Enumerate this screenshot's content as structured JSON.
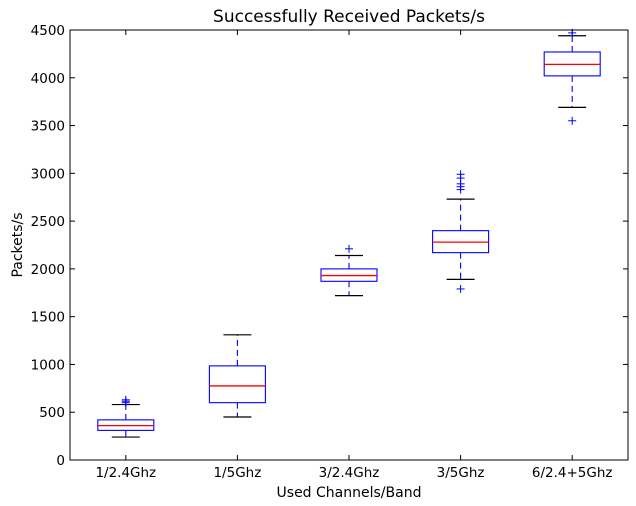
{
  "chart_data": {
    "type": "box",
    "title": "Successfully Received Packets/s",
    "xlabel": "Used Channels/Band",
    "ylabel": "Packets/s",
    "ylim": [
      0,
      4500
    ],
    "yticks": [
      0,
      500,
      1000,
      1500,
      2000,
      2500,
      3000,
      3500,
      4000,
      4500
    ],
    "categories": [
      "1/2.4Ghz",
      "1/5Ghz",
      "3/2.4Ghz",
      "3/5Ghz",
      "6/2.4+5Ghz"
    ],
    "series": [
      {
        "category": "1/2.4Ghz",
        "whisker_low": 240,
        "q1": 310,
        "median": 360,
        "q3": 420,
        "whisker_high": 580,
        "outliers": [
          600,
          615,
          630
        ]
      },
      {
        "category": "1/5Ghz",
        "whisker_low": 450,
        "q1": 600,
        "median": 775,
        "q3": 985,
        "whisker_high": 1310,
        "outliers": []
      },
      {
        "category": "3/2.4Ghz",
        "whisker_low": 1720,
        "q1": 1870,
        "median": 1930,
        "q3": 2000,
        "whisker_high": 2140,
        "outliers": [
          2210
        ]
      },
      {
        "category": "3/5Ghz",
        "whisker_low": 1890,
        "q1": 2170,
        "median": 2280,
        "q3": 2400,
        "whisker_high": 2730,
        "outliers": [
          1790,
          2830,
          2860,
          2890,
          2950,
          2990
        ]
      },
      {
        "category": "6/2.4+5Ghz",
        "whisker_low": 3690,
        "q1": 4020,
        "median": 4140,
        "q3": 4270,
        "whisker_high": 4440,
        "outliers": [
          3550,
          4470
        ]
      }
    ],
    "grid": false,
    "colors": {
      "box": "#0000ff",
      "median": "#ff0000",
      "cap": "#000000",
      "flier": "#0000ff"
    }
  }
}
